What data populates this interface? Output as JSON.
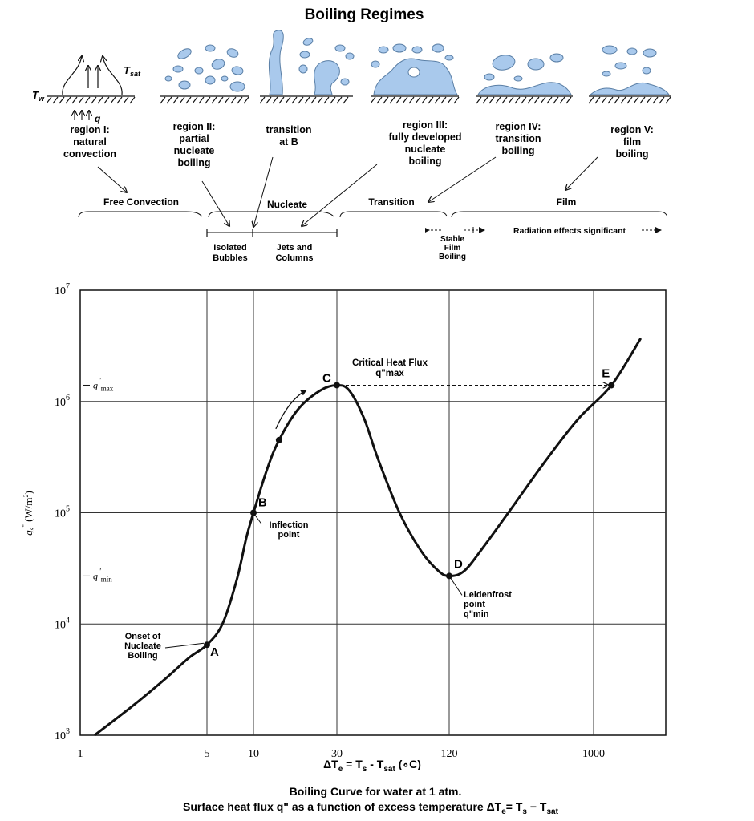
{
  "diagram": {
    "title": "Boiling Regimes",
    "t_w_label": "T",
    "t_w_sub": "w",
    "t_sat_label": "T",
    "t_sat_sub": "sat",
    "q_label": "q",
    "regions": [
      {
        "lines": [
          "region I:",
          "natural",
          "convection"
        ]
      },
      {
        "lines": [
          "region II:",
          "partial",
          "nucleate",
          "boiling"
        ]
      },
      {
        "lines": [
          "transition",
          "at B"
        ]
      },
      {
        "lines": [
          "region III:",
          "fully developed",
          "nucleate",
          "boiling"
        ]
      },
      {
        "lines": [
          "region IV:",
          "transition",
          "boiling"
        ]
      },
      {
        "lines": [
          "region V:",
          "film",
          "boiling"
        ]
      }
    ],
    "bands": {
      "free_convection": "Free Convection",
      "nucleate": "Nucleate",
      "transition": "Transition",
      "film": "Film"
    },
    "sub_bands": {
      "isolated": [
        "Isolated",
        "Bubbles"
      ],
      "jets": [
        "Jets and",
        "Columns"
      ],
      "stable_film": [
        "Stable",
        "Film",
        "Boiling"
      ],
      "radiation": "Radiation effects significant"
    },
    "colors": {
      "bubble_fill": "#a9c9ec",
      "bubble_stroke": "#5a7fa6",
      "ink": "#111111"
    }
  },
  "chart_data": {
    "type": "line",
    "x_ticks": [
      "1",
      "5",
      "10",
      "30",
      "120",
      "1000"
    ],
    "y_ticks": [
      {
        "base": "10",
        "exp": "7"
      },
      {
        "base": "10",
        "exp": "6"
      },
      {
        "base": "10",
        "exp": "5"
      },
      {
        "base": "10",
        "exp": "4"
      },
      {
        "base": "10",
        "exp": "3"
      }
    ],
    "xlabel": {
      "delta": "ΔT",
      "sub_e": "e",
      "eq": " = T",
      "sub_s": "s",
      "minus": " - T",
      "sub_sat": "sat",
      "unit": " (∘C)"
    },
    "ylabel": {
      "q": "q",
      "sub": "s",
      "prime": "\"",
      "unit": " (W/m",
      "sup": "2",
      "close": ")"
    },
    "y_markers": {
      "qmax": {
        "q": "q",
        "prime": "\"",
        "sub": "max"
      },
      "qmin": {
        "q": "q",
        "prime": "\"",
        "sub": "min"
      }
    },
    "curve": [
      {
        "x": 1.2,
        "y": 1000
      },
      {
        "x": 2,
        "y": 1900
      },
      {
        "x": 3,
        "y": 3300
      },
      {
        "x": 4,
        "y": 5000
      },
      {
        "x": 5,
        "y": 6500
      },
      {
        "x": 6.3,
        "y": 10000
      },
      {
        "x": 7.8,
        "y": 25000
      },
      {
        "x": 9,
        "y": 60000
      },
      {
        "x": 10,
        "y": 100000
      },
      {
        "x": 12,
        "y": 250000
      },
      {
        "x": 14,
        "y": 450000
      },
      {
        "x": 18,
        "y": 850000
      },
      {
        "x": 24,
        "y": 1250000
      },
      {
        "x": 30,
        "y": 1400000
      },
      {
        "x": 35,
        "y": 1250000
      },
      {
        "x": 42,
        "y": 700000
      },
      {
        "x": 50,
        "y": 300000
      },
      {
        "x": 65,
        "y": 100000
      },
      {
        "x": 85,
        "y": 45000
      },
      {
        "x": 105,
        "y": 30000
      },
      {
        "x": 120,
        "y": 27000
      },
      {
        "x": 150,
        "y": 30000
      },
      {
        "x": 200,
        "y": 50000
      },
      {
        "x": 300,
        "y": 110000
      },
      {
        "x": 500,
        "y": 300000
      },
      {
        "x": 800,
        "y": 700000
      },
      {
        "x": 1300,
        "y": 1400000
      },
      {
        "x": 2000,
        "y": 3700000
      }
    ],
    "points": [
      {
        "id": "A",
        "x": 5,
        "y": 6500
      },
      {
        "id": "B",
        "x": 10,
        "y": 100000
      },
      {
        "id": "mid",
        "x": 14,
        "y": 450000
      },
      {
        "id": "C",
        "x": 30,
        "y": 1400000
      },
      {
        "id": "D",
        "x": 120,
        "y": 27000
      },
      {
        "id": "E",
        "x": 1300,
        "y": 1400000
      }
    ],
    "point_labels": {
      "A": "A",
      "B": "B",
      "C": "C",
      "D": "D",
      "E": "E"
    },
    "annotations": {
      "onset": [
        "Onset of",
        "Nucleate",
        "Boiling"
      ],
      "inflection": [
        "Inflection",
        "point"
      ],
      "chf": [
        "Critical Heat Flux",
        "q\"max"
      ],
      "leidenfrost": [
        "Leidenfrost",
        "point",
        "q\"min"
      ]
    },
    "caption": {
      "line1": "Boiling Curve for water at 1 atm.",
      "line2_text": "Surface heat flux q\" as a function of excess temperature ",
      "line2_delta": "ΔT",
      "line2_sub_e": "e",
      "line2_eq": "= T",
      "line2_sub_s": "s",
      "line2_minus": " − T",
      "line2_sub_sat": "sat"
    }
  }
}
